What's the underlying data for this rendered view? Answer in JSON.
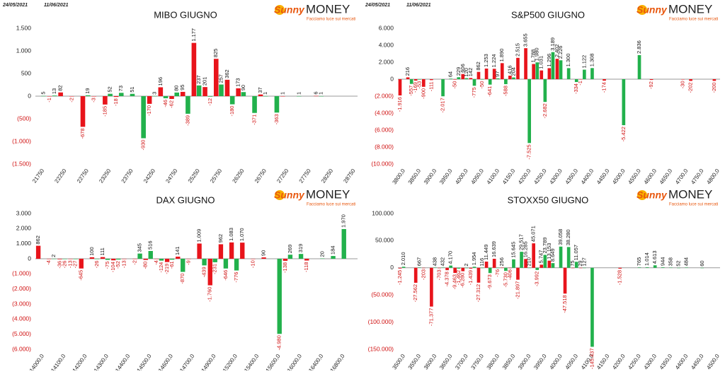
{
  "chart_data": [
    {
      "type": "bar",
      "title": "MIBO GIUGNO",
      "dates": [
        "24/05/2021",
        "11/06/2021"
      ],
      "logo": {
        "brand": "Sunny",
        "name": "MONEY",
        "tagline": "Facciamo luce sui mercati"
      },
      "categories": [
        "21750",
        null,
        "22250",
        null,
        "22750",
        null,
        "23250",
        null,
        "23750",
        null,
        "24250",
        null,
        "24750",
        null,
        "25250",
        null,
        "25750",
        null,
        "26250",
        null,
        "26750",
        null,
        "27250",
        null,
        "27750",
        null,
        "28250",
        null,
        "28750"
      ],
      "series": [
        {
          "color": "#e8141b",
          "values": [
            null,
            -1,
            82,
            -2,
            -678,
            -3,
            -185,
            -18,
            null,
            null,
            -170,
            196,
            -62,
            95,
            1177,
            201,
            825,
            362,
            173,
            null,
            37,
            null,
            1,
            null,
            null,
            6,
            null,
            null,
            null
          ],
          "value_labels": [
            null,
            "-1",
            "82",
            "-2",
            "-678",
            "-3",
            "-185",
            "-18",
            null,
            null,
            "-170",
            "196",
            "-62",
            "95",
            "1.177",
            "201",
            "825",
            "362",
            "173",
            null,
            "37",
            null,
            "1",
            null,
            null,
            "6",
            null,
            null,
            null
          ]
        },
        {
          "color": "#22b14c",
          "values": [
            5,
            13,
            null,
            null,
            19,
            null,
            52,
            73,
            51,
            -930,
            3,
            -46,
            80,
            -389,
            237,
            -12,
            257,
            -180,
            90,
            -371,
            1,
            -363,
            null,
            1,
            null,
            1,
            null,
            null,
            null
          ],
          "value_labels": [
            "5",
            "13",
            null,
            null,
            "19",
            null,
            "52",
            "73",
            "51",
            "-930",
            "3",
            "-46",
            "80",
            "-389",
            "237",
            "-12",
            "257",
            "-180",
            "90",
            "-371",
            "1",
            "-363",
            null,
            "1",
            null,
            "1",
            null,
            null,
            null
          ]
        }
      ],
      "ylim": [
        -1500,
        1500
      ],
      "yticks": [
        {
          "value": 1500,
          "label": "1.500"
        },
        {
          "value": 1000,
          "label": "1.000"
        },
        500,
        0,
        {
          "value": -500,
          "label": "(500)"
        },
        {
          "value": -1000,
          "label": "(1.000)"
        },
        {
          "value": -1500,
          "label": "(1.500)"
        }
      ],
      "grid": false
    },
    {
      "type": "bar",
      "title": "S&P500 GIUGNO",
      "dates": [
        "24/05/2021",
        "11/06/2021"
      ],
      "logo": {
        "brand": "Sunny",
        "name": "MONEY",
        "tagline": "Facciamo luce sui mercati"
      },
      "categories": [
        "3800,0",
        null,
        "3850,0",
        null,
        "3900,0",
        null,
        "3950,0",
        null,
        "4000,0",
        null,
        "4050,0",
        null,
        "4100,0",
        null,
        "4150,0",
        null,
        "4200,0",
        null,
        "4250,0",
        null,
        "4300,0",
        null,
        "4350,0",
        null,
        "4400,0",
        null,
        "4450,0",
        null,
        "4500,0",
        null,
        "4550,0",
        null,
        "4600,0",
        null,
        "4650,0",
        null,
        "4700,0",
        null,
        "4750,0",
        null,
        "4800,0"
      ],
      "series": [
        {
          "color": "#e8141b",
          "values": [
            -1916,
            216,
            -169,
            -900,
            -111,
            null,
            null,
            -50,
            606,
            142,
            862,
            1253,
            1224,
            1890,
            416,
            2515,
            3655,
            1788,
            1031,
            1296,
            2402,
            null,
            null,
            -1,
            null,
            null,
            -174,
            null,
            null,
            null,
            null,
            null,
            -92,
            null,
            null,
            null,
            -30,
            -202,
            null,
            null,
            -200
          ],
          "value_labels": [
            "-1.916",
            "216",
            "-169",
            "-900",
            "-111",
            null,
            null,
            "-50",
            "606",
            "142",
            "862",
            "1.253",
            "1.224",
            "1.890",
            "416",
            "2.515",
            "3.655",
            "1.788",
            "1.031",
            "1.296",
            "2.402",
            null,
            null,
            "-1",
            null,
            null,
            "-174",
            null,
            null,
            null,
            null,
            null,
            "-92",
            null,
            null,
            null,
            "-30",
            "-202",
            null,
            null,
            "-200"
          ]
        },
        {
          "color": "#22b14c",
          "values": [
            null,
            -557,
            -53,
            null,
            null,
            -2017,
            64,
            229,
            120,
            -775,
            -50,
            -641,
            97,
            -588,
            204,
            null,
            -7525,
            1980,
            -2682,
            3189,
            2226,
            1300,
            -334,
            1122,
            1308,
            null,
            null,
            null,
            -5422,
            null,
            2836,
            null,
            null,
            null,
            null,
            null,
            null,
            null,
            null,
            null,
            null
          ],
          "value_labels": [
            null,
            "-557",
            "-53",
            null,
            null,
            "-2.017",
            "64",
            "229",
            "120",
            "-775",
            "-50",
            "-641",
            "97",
            "-588",
            "204",
            null,
            "-7.525",
            "1.980",
            "-2.682",
            "3.189",
            "2.226",
            "1.300",
            "-334",
            "1.122",
            "1.308",
            null,
            null,
            null,
            "-5.422",
            null,
            "2.836",
            null,
            null,
            null,
            null,
            null,
            null,
            null,
            null,
            null,
            null
          ]
        }
      ],
      "ylim": [
        -10000,
        6000
      ],
      "yticks": [
        {
          "value": 6000,
          "label": "6.000"
        },
        {
          "value": 4000,
          "label": "4.000"
        },
        {
          "value": 2000,
          "label": "2.000"
        },
        0,
        {
          "value": -2000,
          "label": "(2.000)"
        },
        {
          "value": -4000,
          "label": "(4.000)"
        },
        {
          "value": -6000,
          "label": "(6.000)"
        },
        {
          "value": -8000,
          "label": "(8.000)"
        },
        {
          "value": -10000,
          "label": "(10.000)"
        }
      ],
      "grid": false
    },
    {
      "type": "bar",
      "title": "DAX GIUGNO",
      "logo": {
        "brand": "Sunny",
        "name": "MONEY",
        "tagline": "Facciamo luce sui mercati"
      },
      "categories": [
        "14000,0",
        null,
        "14100,0",
        null,
        "14200,0",
        null,
        "14300,0",
        null,
        "14400,0",
        null,
        "14500,0",
        null,
        "14600,0",
        null,
        "14700,0",
        null,
        "14900,0",
        null,
        "15200,0",
        null,
        "15400,0",
        null,
        "15600,0",
        null,
        "16000,0",
        null,
        "16400,0",
        null,
        "16800,0",
        null
      ],
      "series": [
        {
          "color": "#e8141b",
          "values": [
            862,
            -4,
            -36,
            -13,
            -645,
            100,
            111,
            -104,
            -13,
            -2,
            -80,
            -4,
            -219,
            141,
            -9,
            1009,
            -1760,
            962,
            1083,
            1070,
            -10,
            90,
            null,
            -138,
            null,
            -118,
            null,
            null,
            null,
            null
          ],
          "value_labels": [
            "862",
            "-4",
            "-36",
            "-13",
            "-645",
            "100",
            "111",
            "-104",
            "-13",
            "-2",
            "-80",
            "-4",
            "-219",
            "141",
            "-9",
            "1.009",
            "-1.760",
            "962",
            "1.083",
            "1.070",
            "-10",
            "90",
            null,
            "-138",
            null,
            "-118",
            null,
            null,
            null,
            null
          ]
        },
        {
          "color": "#22b14c",
          "values": [
            null,
            2,
            -26,
            -27,
            null,
            -26,
            -75,
            -52,
            null,
            345,
            516,
            -124,
            -61,
            -870,
            null,
            -439,
            -231,
            -646,
            -776,
            null,
            null,
            null,
            -4980,
            269,
            319,
            null,
            20,
            184,
            1970,
            null
          ],
          "value_labels": [
            null,
            "2",
            "-26",
            "-27",
            null,
            "-26",
            "-75",
            "-52",
            null,
            "345",
            "516",
            "-124",
            "-61",
            "-870",
            null,
            "-439",
            "-231",
            "-646",
            "-776",
            null,
            null,
            null,
            "-4.980",
            "269",
            "319",
            null,
            "20",
            "184",
            "1.970",
            null
          ]
        }
      ],
      "ylim": [
        -6000,
        3000
      ],
      "yticks": [
        {
          "value": 3000,
          "label": "3.000"
        },
        {
          "value": 2000,
          "label": "2.000"
        },
        {
          "value": 1000,
          "label": "1.000"
        },
        0,
        {
          "value": -1000,
          "label": "(1.000)"
        },
        {
          "value": -2000,
          "label": "(2.000)"
        },
        {
          "value": -3000,
          "label": "(3.000)"
        },
        {
          "value": -4000,
          "label": "(4.000)"
        },
        {
          "value": -5000,
          "label": "(5.000)"
        },
        {
          "value": -6000,
          "label": "(6.000)"
        }
      ],
      "grid": false
    },
    {
      "type": "bar",
      "title": "STOXX50 GIUGNO",
      "logo": {
        "brand": "Sunny",
        "name": "MONEY",
        "tagline": "Facciamo luce sui mercati"
      },
      "categories": [
        "3500,0",
        null,
        "3550,0",
        null,
        "3600,0",
        null,
        "3650,0",
        null,
        "3700,0",
        null,
        "3750,0",
        null,
        "3800,0",
        null,
        "3850,0",
        null,
        "3900,0",
        null,
        "3950,0",
        null,
        "4000,0",
        null,
        "4050,0",
        null,
        "4100,0",
        null,
        "4150,0",
        null,
        "4200,0",
        null,
        "4250,0",
        null,
        "4300,0",
        null,
        "4350,0",
        null,
        "4400,0",
        null,
        "4450,0",
        null,
        "4500,0"
      ],
      "series": [
        {
          "color": "#e8141b",
          "values": [
            -1245,
            null,
            -27562,
            -203,
            -71377,
            -703,
            -4378,
            -9463,
            -6280,
            -1439,
            -27312,
            11449,
            16639,
            256,
            -406,
            -21897,
            16285,
            45071,
            5747,
            13153,
            null,
            -47518,
            75,
            29,
            null,
            null,
            null,
            null,
            -1528,
            null,
            null,
            null,
            null,
            null,
            null,
            null,
            null,
            null,
            null,
            null,
            null
          ],
          "value_labels": [
            "-1.245",
            null,
            "-27.562",
            "-203",
            "-71.377",
            "-703",
            "-4.378",
            "-9.463",
            "-6.280",
            "-1.439",
            "-27.312",
            "11.449",
            "16.639",
            "256",
            "-406",
            "-21.897",
            "16.285",
            "45.071",
            "5.747",
            "13.153",
            null,
            "-47.518",
            "75",
            "29",
            null,
            null,
            null,
            null,
            "-1.528",
            null,
            null,
            null,
            null,
            null,
            null,
            null,
            null,
            null,
            null,
            null,
            null
          ]
        },
        {
          "color": "#22b14c",
          "values": [
            2010,
            null,
            667,
            null,
            438,
            432,
            4170,
            -1462,
            2,
            1954,
            116,
            -9673,
            -76,
            -5730,
            15645,
            29517,
            210,
            -3992,
            23789,
            8649,
            39058,
            38280,
            11057,
            127,
            -145437,
            null,
            null,
            null,
            null,
            null,
            765,
            1014,
            4613,
            944,
            358,
            52,
            484,
            null,
            60,
            null,
            null
          ],
          "value_labels": [
            "2.010",
            null,
            "667",
            null,
            "438",
            "432",
            "4.170",
            "-1.462",
            "2",
            "1.954",
            "116",
            "-9.673",
            "-76",
            "-5.730",
            "15.645",
            "29.517",
            "210",
            "-3.992",
            "23.789",
            "8.649",
            "39.058",
            "38.280",
            "11.057",
            "127",
            "-145.437",
            null,
            null,
            null,
            null,
            null,
            "765",
            "1.014",
            "4.613",
            "944",
            "358",
            "52",
            "484",
            null,
            "60",
            null,
            null
          ]
        }
      ],
      "ylim": [
        -150000,
        100000
      ],
      "yticks": [
        {
          "value": 100000,
          "label": "100.000"
        },
        {
          "value": 50000,
          "label": "50.000"
        },
        0,
        {
          "value": -50000,
          "label": "(50.000)"
        },
        {
          "value": -100000,
          "label": "(100.000)"
        },
        {
          "value": -150000,
          "label": "(150.000)"
        }
      ],
      "grid": false
    }
  ]
}
